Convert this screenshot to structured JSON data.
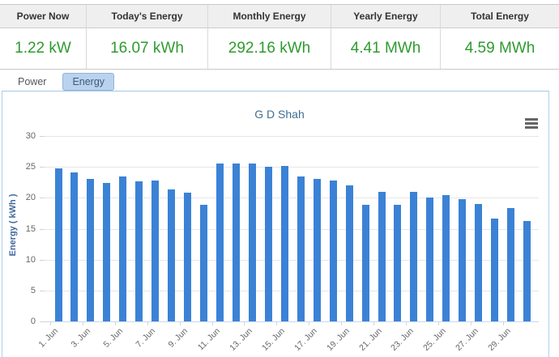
{
  "summary": {
    "columns": [
      {
        "label": "Power Now",
        "value": "1.22 kW"
      },
      {
        "label": "Today's Energy",
        "value": "16.07 kWh"
      },
      {
        "label": "Monthly Energy",
        "value": "292.16 kWh"
      },
      {
        "label": "Yearly Energy",
        "value": "4.41 MWh"
      },
      {
        "label": "Total Energy",
        "value": "4.59 MWh"
      }
    ]
  },
  "tabs": {
    "items": [
      {
        "label": "Power",
        "active": false
      },
      {
        "label": "Energy",
        "active": true
      }
    ]
  },
  "chart_data": {
    "type": "bar",
    "title": "G D Shah",
    "xlabel": "",
    "ylabel": "Energy ( kWh )",
    "ylim": [
      0,
      30
    ],
    "yticks": [
      0,
      5,
      10,
      15,
      20,
      25,
      30
    ],
    "grid": true,
    "legend": false,
    "bar_color": "#3b82d6",
    "categories": [
      "1. Jun",
      "2. Jun",
      "3. Jun",
      "4. Jun",
      "5. Jun",
      "6. Jun",
      "7. Jun",
      "8. Jun",
      "9. Jun",
      "10. Jun",
      "11. Jun",
      "12. Jun",
      "13. Jun",
      "14. Jun",
      "15. Jun",
      "16. Jun",
      "17. Jun",
      "18. Jun",
      "19. Jun",
      "20. Jun",
      "21. Jun",
      "22. Jun",
      "23. Jun",
      "24. Jun",
      "25. Jun",
      "26. Jun",
      "27. Jun",
      "28. Jun",
      "29. Jun",
      "30. Jun"
    ],
    "values": [
      24.7,
      24.1,
      23.1,
      22.4,
      23.4,
      22.6,
      22.8,
      21.4,
      20.8,
      18.9,
      25.6,
      25.5,
      25.5,
      25.0,
      25.1,
      23.5,
      23.1,
      22.8,
      22.0,
      18.8,
      21.0,
      18.8,
      20.9,
      20.1,
      20.4,
      19.8,
      19.0,
      16.6,
      18.4,
      16.2
    ],
    "visible_x_labels": [
      "1. Jun",
      "3. Jun",
      "5. Jun",
      "7. Jun",
      "9. Jun",
      "11. Jun",
      "13. Jun",
      "15. Jun",
      "17. Jun",
      "19. Jun",
      "21. Jun",
      "23. Jun",
      "25. Jun",
      "27. Jun",
      "29. Jun"
    ]
  },
  "export_menu": {
    "icon": "hamburger-icon"
  },
  "colors": {
    "value_green": "#2e9b2e",
    "bar_blue": "#3b82d6",
    "tab_active_bg": "#b9d3ef",
    "panel_border": "#b0cce9",
    "grid_gray": "#e6e6e6"
  }
}
